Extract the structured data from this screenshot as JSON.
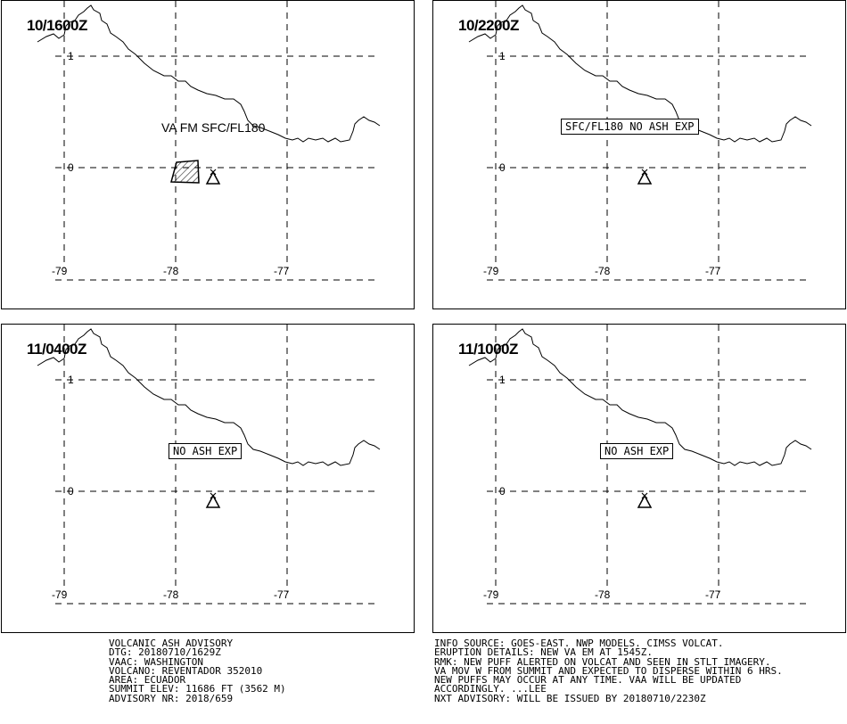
{
  "panels": [
    {
      "time": "10/1600Z",
      "label": "VA FM SFC/FL180",
      "boxed": false,
      "ash_polygon": true
    },
    {
      "time": "10/2200Z",
      "label": "SFC/FL180 NO ASH EXP",
      "boxed": true,
      "ash_polygon": false
    },
    {
      "time": "11/0400Z",
      "label": "NO ASH EXP",
      "boxed": true,
      "ash_polygon": false
    },
    {
      "time": "11/1000Z",
      "label": "NO ASH EXP",
      "boxed": true,
      "ash_polygon": false
    }
  ],
  "grid": {
    "lat_labels": [
      "1",
      "0"
    ],
    "lon_labels": [
      "-79",
      "-78",
      "-77"
    ]
  },
  "volcano_icon": "volcano-summit-icon",
  "advisory_left": [
    "VOLCANIC ASH ADVISORY",
    "DTG: 20180710/1629Z",
    "VAAC: WASHINGTON",
    "VOLCANO: REVENTADOR 352010",
    "AREA: ECUADOR",
    "SUMMIT ELEV: 11686 FT (3562 M)",
    "ADVISORY NR: 2018/659"
  ],
  "advisory_right": [
    "INFO SOURCE: GOES-EAST. NWP MODELS. CIMSS VOLCAT.",
    "ERUPTION DETAILS: NEW VA EM AT 1545Z.",
    "RMK: NEW PUFF ALERTED ON VOLCAT AND SEEN IN STLT IMAGERY.",
    "VA MOV W FROM SUMMIT AND EXPECTED TO DISPERSE WITHIN 6 HRS.",
    "NEW PUFFS MAY OCCUR AT ANY TIME. VAA WILL BE UPDATED",
    "ACCORDINGLY. ...LEE",
    "NXT ADVISORY: WILL BE ISSUED BY 20180710/2230Z"
  ]
}
